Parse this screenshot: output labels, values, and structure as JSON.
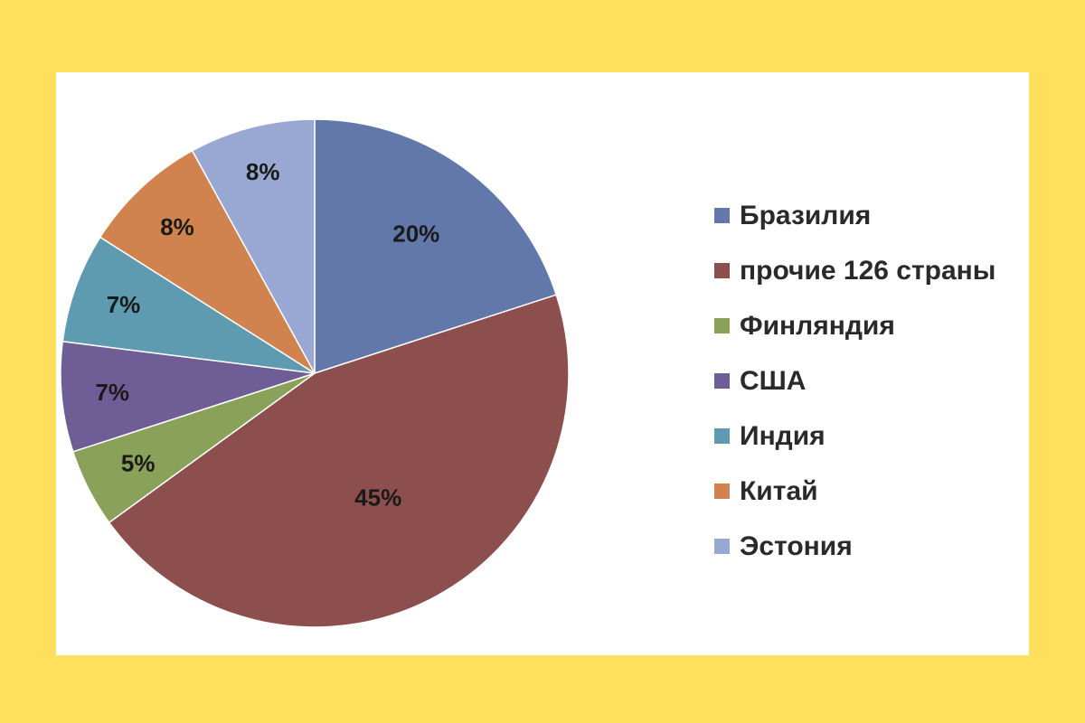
{
  "chart_data": {
    "type": "pie",
    "title": "",
    "slices": [
      {
        "label": "Бразилия",
        "value": 20,
        "display": "20%",
        "color": "#6278ab"
      },
      {
        "label": "прочие 126 страны",
        "value": 45,
        "display": "45%",
        "color": "#8c4f4d"
      },
      {
        "label": "Финляндия",
        "value": 5,
        "display": "5%",
        "color": "#8aa15a"
      },
      {
        "label": "США",
        "value": 7,
        "display": "7%",
        "color": "#6f5e96"
      },
      {
        "label": "Индия",
        "value": 7,
        "display": "7%",
        "color": "#5e9bb0"
      },
      {
        "label": "Китай",
        "value": 8,
        "display": "8%",
        "color": "#d0834f"
      },
      {
        "label": "Эстония",
        "value": 8,
        "display": "8%",
        "color": "#98a8d3"
      }
    ],
    "start_angle": "12 o'clock",
    "direction": "clockwise",
    "legend_position": "right"
  },
  "colors": {
    "background": "#ffe05c",
    "panel": "#ffffff"
  }
}
